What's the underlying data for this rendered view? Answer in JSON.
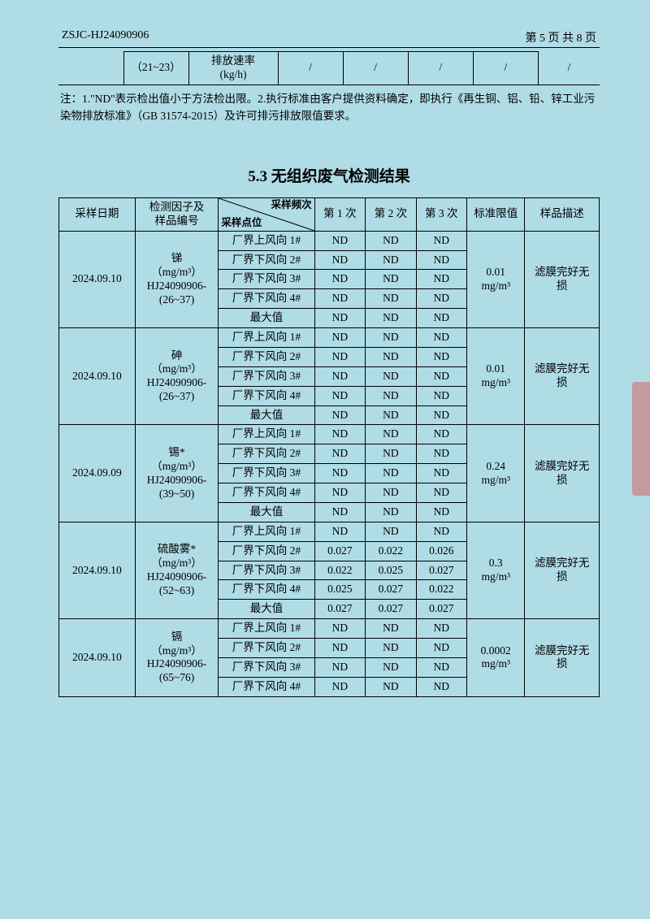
{
  "header": {
    "left": "ZSJC-HJ24090906",
    "right": "第 5 页 共 8 页"
  },
  "topTable": {
    "c1": "（21~23）",
    "c2bottom": "排放速率\n(kg/h)",
    "slashes": [
      "/",
      "/",
      "/",
      "/",
      "/"
    ]
  },
  "note": "注：1.\"ND\"表示检出值小于方法检出限。2.执行标准由客户提供资料确定，即执行《再生铜、铝、铅、锌工业污染物排放标准》（GB 31574-2015）及许可排污排放限值要求。",
  "sectionTitle": "5.3 无组织废气检测结果",
  "mainHeaders": {
    "date": "采样日期",
    "factor": "检测因子及\n样品编号",
    "diagTop": "采样频次",
    "diagBottom": "采样点位",
    "t1": "第 1 次",
    "t2": "第 2 次",
    "t3": "第 3 次",
    "limit": "标准限值",
    "desc": "样品描述"
  },
  "locLabels": {
    "up1": "厂界上风向 1#",
    "dn2": "厂界下风向 2#",
    "dn3": "厂界下风向 3#",
    "dn4": "厂界下风向 4#",
    "max": "最大值"
  },
  "groups": [
    {
      "date": "2024.09.10",
      "factor": "锑\n（mg/m³）\nHJ24090906-\n(26~37)",
      "limit": "0.01\nmg/m³",
      "desc": "滤膜完好无\n损",
      "rows": [
        {
          "loc": "up1",
          "v": [
            "ND",
            "ND",
            "ND"
          ]
        },
        {
          "loc": "dn2",
          "v": [
            "ND",
            "ND",
            "ND"
          ]
        },
        {
          "loc": "dn3",
          "v": [
            "ND",
            "ND",
            "ND"
          ]
        },
        {
          "loc": "dn4",
          "v": [
            "ND",
            "ND",
            "ND"
          ]
        },
        {
          "loc": "max",
          "v": [
            "ND",
            "ND",
            "ND"
          ]
        }
      ]
    },
    {
      "date": "2024.09.10",
      "factor": "砷\n（mg/m³）\nHJ24090906-\n(26~37)",
      "limit": "0.01\nmg/m³",
      "desc": "滤膜完好无\n损",
      "rows": [
        {
          "loc": "up1",
          "v": [
            "ND",
            "ND",
            "ND"
          ]
        },
        {
          "loc": "dn2",
          "v": [
            "ND",
            "ND",
            "ND"
          ]
        },
        {
          "loc": "dn3",
          "v": [
            "ND",
            "ND",
            "ND"
          ]
        },
        {
          "loc": "dn4",
          "v": [
            "ND",
            "ND",
            "ND"
          ]
        },
        {
          "loc": "max",
          "v": [
            "ND",
            "ND",
            "ND"
          ]
        }
      ]
    },
    {
      "date": "2024.09.09",
      "factor": "锡*\n（mg/m³）\nHJ24090906-\n(39~50)",
      "limit": "0.24\nmg/m³",
      "desc": "滤膜完好无\n损",
      "rows": [
        {
          "loc": "up1",
          "v": [
            "ND",
            "ND",
            "ND"
          ]
        },
        {
          "loc": "dn2",
          "v": [
            "ND",
            "ND",
            "ND"
          ]
        },
        {
          "loc": "dn3",
          "v": [
            "ND",
            "ND",
            "ND"
          ]
        },
        {
          "loc": "dn4",
          "v": [
            "ND",
            "ND",
            "ND"
          ]
        },
        {
          "loc": "max",
          "v": [
            "ND",
            "ND",
            "ND"
          ]
        }
      ]
    },
    {
      "date": "2024.09.10",
      "factor": "硫酸雾*\n（mg/m³）\nHJ24090906-\n(52~63)",
      "limit": "0.3\nmg/m³",
      "desc": "滤膜完好无\n损",
      "rows": [
        {
          "loc": "up1",
          "v": [
            "ND",
            "ND",
            "ND"
          ]
        },
        {
          "loc": "dn2",
          "v": [
            "0.027",
            "0.022",
            "0.026"
          ]
        },
        {
          "loc": "dn3",
          "v": [
            "0.022",
            "0.025",
            "0.027"
          ]
        },
        {
          "loc": "dn4",
          "v": [
            "0.025",
            "0.027",
            "0.022"
          ]
        },
        {
          "loc": "max",
          "v": [
            "0.027",
            "0.027",
            "0.027"
          ]
        }
      ]
    },
    {
      "date": "2024.09.10",
      "factor": "镉\n（mg/m³）\nHJ24090906-\n(65~76)",
      "limit": "0.0002\nmg/m³",
      "desc": "滤膜完好无\n损",
      "noMax": true,
      "rows": [
        {
          "loc": "up1",
          "v": [
            "ND",
            "ND",
            "ND"
          ]
        },
        {
          "loc": "dn2",
          "v": [
            "ND",
            "ND",
            "ND"
          ]
        },
        {
          "loc": "dn3",
          "v": [
            "ND",
            "ND",
            "ND"
          ]
        },
        {
          "loc": "dn4",
          "v": [
            "ND",
            "ND",
            "ND"
          ]
        }
      ]
    }
  ],
  "style": {
    "colWidths": [
      "84",
      "92",
      "106",
      "56",
      "56",
      "56",
      "64",
      "82"
    ],
    "bg": "#b0dce6",
    "border": "#000000"
  }
}
